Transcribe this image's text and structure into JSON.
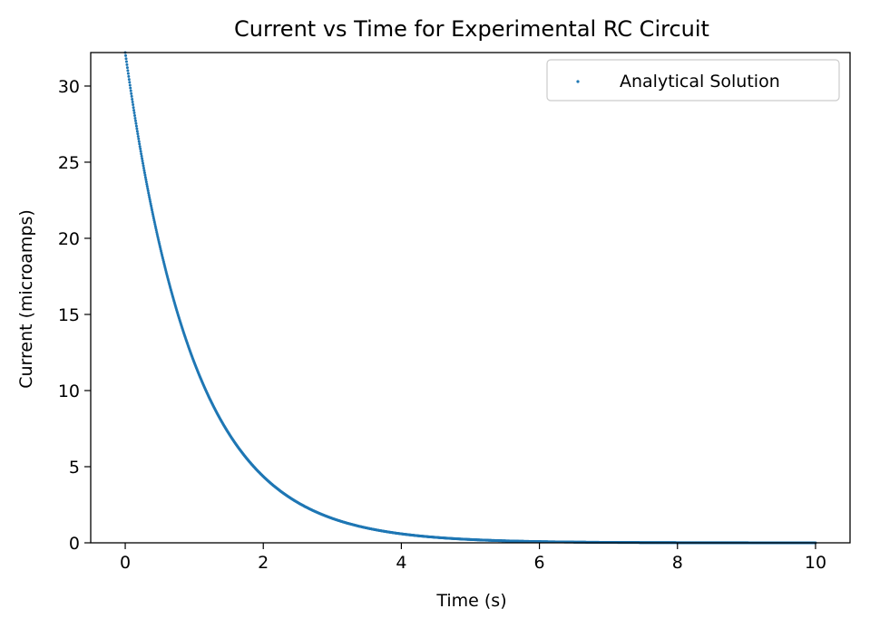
{
  "chart_data": {
    "type": "scatter",
    "title": "Current vs Time for Experimental RC Circuit",
    "xlabel": "Time (s)",
    "ylabel": "Current (microamps)",
    "xlim": [
      -0.5,
      10.5
    ],
    "ylim": [
      0,
      32.2
    ],
    "xticks": [
      "0",
      "2",
      "4",
      "6",
      "8",
      "10"
    ],
    "yticks": [
      "0",
      "5",
      "10",
      "15",
      "20",
      "25",
      "30"
    ],
    "grid": false,
    "legend_position": "top-right",
    "series": [
      {
        "name": "Analytical Solution",
        "color": "#1f77b4",
        "model": {
          "expr": "I0 * exp(-t / tau)",
          "I0": 32.2,
          "tau": 1.0,
          "t_start": 0,
          "t_end": 10
        },
        "x": [
          0,
          0.25,
          0.5,
          0.75,
          1,
          1.25,
          1.5,
          1.75,
          2,
          2.5,
          3,
          3.5,
          4,
          4.5,
          5,
          6,
          7,
          8,
          9,
          10
        ],
        "y": [
          32.2,
          25.1,
          19.5,
          15.2,
          11.8,
          9.2,
          7.2,
          5.6,
          4.4,
          2.6,
          1.6,
          0.97,
          0.59,
          0.36,
          0.22,
          0.08,
          0.03,
          0.01,
          0.0,
          0.0
        ]
      }
    ]
  }
}
